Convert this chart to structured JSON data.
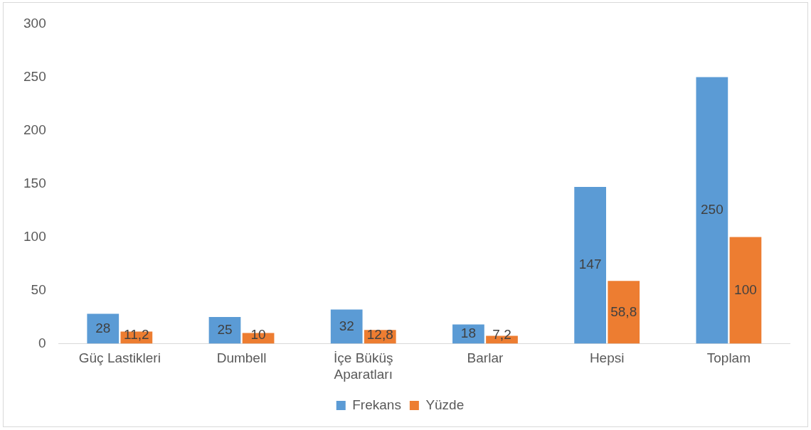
{
  "chart_data": {
    "type": "bar",
    "categories": [
      "Güç Lastikleri",
      "Dumbell",
      "İçe Büküş Aparatları",
      "Barlar",
      "Hepsi",
      "Toplam"
    ],
    "series": [
      {
        "name": "Frekans",
        "color": "#5b9bd5",
        "values": [
          28,
          25,
          32,
          18,
          147,
          250
        ],
        "value_labels": [
          "28",
          "25",
          "32",
          "18",
          "147",
          "250"
        ]
      },
      {
        "name": "Yüzde",
        "color": "#ed7d31",
        "values": [
          11.2,
          10,
          12.8,
          7.2,
          58.8,
          100
        ],
        "value_labels": [
          "11,2",
          "10",
          "12,8",
          "7,2",
          "58,8",
          "100"
        ]
      }
    ],
    "ylim": [
      0,
      300
    ],
    "yticks": [
      0,
      50,
      100,
      150,
      200,
      250,
      300
    ],
    "grid": false,
    "legend": "bottom"
  }
}
